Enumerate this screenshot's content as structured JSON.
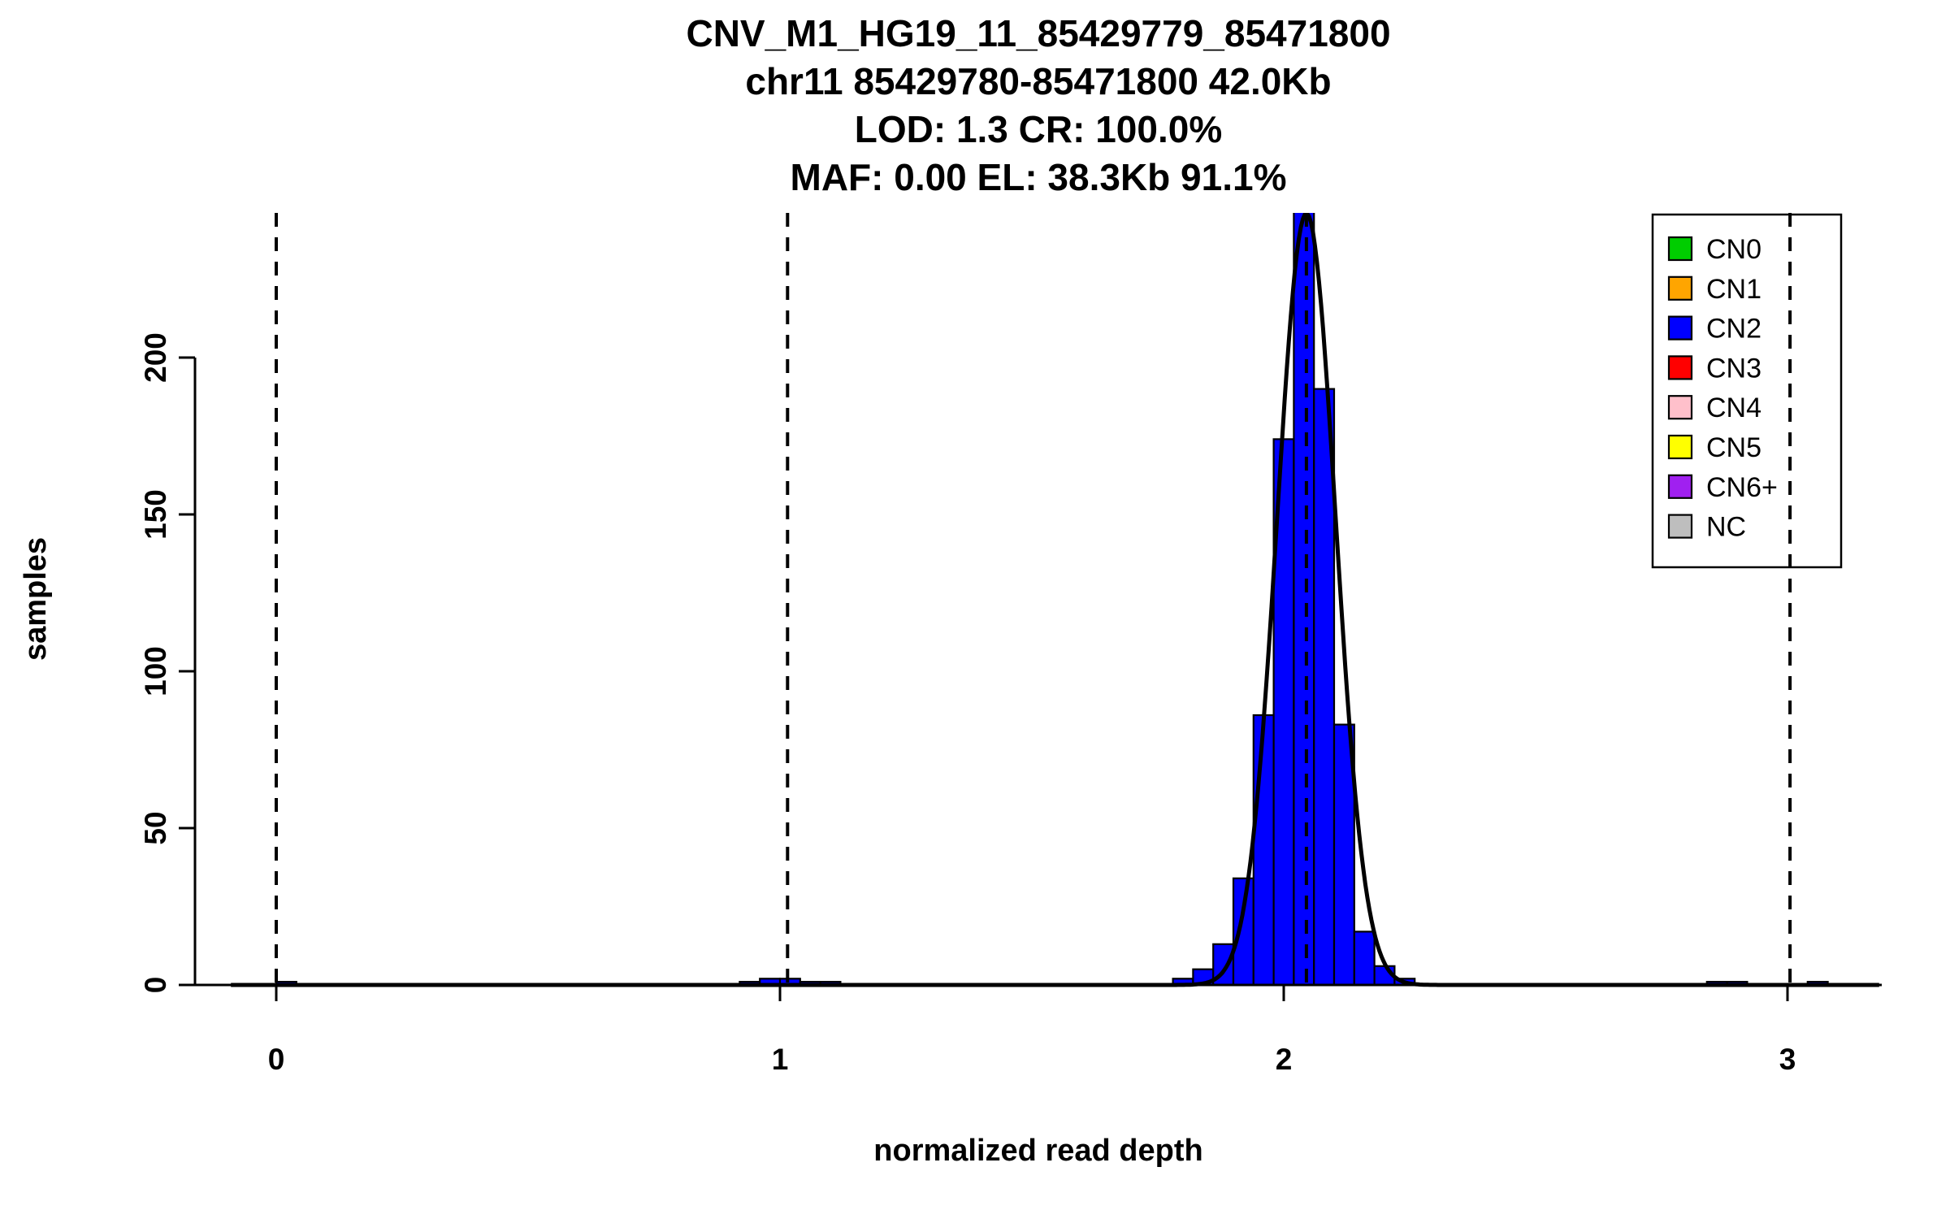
{
  "chart_data": {
    "type": "bar",
    "subtype": "histogram-with-density-curve",
    "title_lines": [
      "CNV_M1_HG19_11_85429779_85471800",
      "chr11 85429780-85471800 42.0Kb",
      "LOD: 1.3 CR: 100.0%",
      "MAF: 0.00 EL: 38.3Kb 91.1%"
    ],
    "xlabel": "normalized read depth",
    "ylabel": "samples",
    "xlim": [
      -0.16,
      3.19
    ],
    "ylim": [
      0,
      246
    ],
    "xticks": [
      0,
      1,
      2,
      3
    ],
    "yticks": [
      0,
      50,
      100,
      150,
      200
    ],
    "grid": false,
    "legend_position": "top-right",
    "bars": [
      {
        "x0": 0.0,
        "x1": 0.04,
        "count": 1
      },
      {
        "x0": 0.92,
        "x1": 0.96,
        "count": 1
      },
      {
        "x0": 0.96,
        "x1": 1.0,
        "count": 2
      },
      {
        "x0": 1.0,
        "x1": 1.04,
        "count": 2
      },
      {
        "x0": 1.04,
        "x1": 1.08,
        "count": 1
      },
      {
        "x0": 1.08,
        "x1": 1.12,
        "count": 1
      },
      {
        "x0": 1.78,
        "x1": 1.82,
        "count": 2
      },
      {
        "x0": 1.82,
        "x1": 1.86,
        "count": 5
      },
      {
        "x0": 1.86,
        "x1": 1.9,
        "count": 13
      },
      {
        "x0": 1.9,
        "x1": 1.94,
        "count": 34
      },
      {
        "x0": 1.94,
        "x1": 1.98,
        "count": 86
      },
      {
        "x0": 1.98,
        "x1": 2.02,
        "count": 174
      },
      {
        "x0": 2.02,
        "x1": 2.06,
        "count": 250
      },
      {
        "x0": 2.06,
        "x1": 2.1,
        "count": 190
      },
      {
        "x0": 2.1,
        "x1": 2.14,
        "count": 83
      },
      {
        "x0": 2.14,
        "x1": 2.18,
        "count": 17
      },
      {
        "x0": 2.18,
        "x1": 2.22,
        "count": 6
      },
      {
        "x0": 2.22,
        "x1": 2.26,
        "count": 2
      },
      {
        "x0": 2.84,
        "x1": 2.88,
        "count": 1
      },
      {
        "x0": 2.88,
        "x1": 2.92,
        "count": 1
      },
      {
        "x0": 3.04,
        "x1": 3.08,
        "count": 1
      }
    ],
    "curve": {
      "type": "gaussian",
      "mean": 2.045,
      "sd": 0.058,
      "peak": 246,
      "color": "#000000"
    },
    "dashed_lines_x": [
      0.0,
      1.015,
      2.045,
      3.005
    ],
    "legend": [
      {
        "label": "CN0",
        "color": "#00CD00"
      },
      {
        "label": "CN1",
        "color": "#FFA500"
      },
      {
        "label": "CN2",
        "color": "#0000FF"
      },
      {
        "label": "CN3",
        "color": "#FF0000"
      },
      {
        "label": "CN4",
        "color": "#FFC0CB"
      },
      {
        "label": "CN5",
        "color": "#FFFF00"
      },
      {
        "label": "CN6+",
        "color": "#A020F0"
      },
      {
        "label": "NC",
        "color": "#BEBEBE"
      }
    ],
    "colors": {
      "bar_fill": "#0000FF",
      "bar_stroke": "#000000",
      "curve": "#000000",
      "axis": "#000000",
      "background": "#FFFFFF"
    }
  }
}
